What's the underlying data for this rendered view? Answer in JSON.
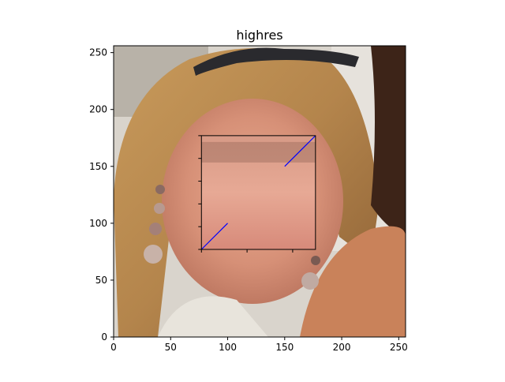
{
  "chart_data": {
    "type": "image",
    "title": "highres",
    "xlim": [
      0,
      256
    ],
    "ylim": [
      0,
      256
    ],
    "xticks": [
      0,
      50,
      100,
      150,
      200,
      250
    ],
    "yticks": [
      0,
      50,
      100,
      150,
      200,
      250
    ],
    "xtick_labels": [
      "0",
      "50",
      "100",
      "150",
      "200",
      "250"
    ],
    "ytick_labels": [
      "0",
      "50",
      "100",
      "150",
      "200",
      "250"
    ],
    "image_content": "photo",
    "inset": {
      "extent_x": [
        77,
        177
      ],
      "extent_y": [
        77,
        177
      ],
      "minor_ticks_x": [
        77,
        117,
        157
      ],
      "minor_ticks_y": [
        77,
        97,
        117,
        137,
        157,
        177
      ],
      "lines": [
        {
          "x": [
            77,
            100
          ],
          "y": [
            77,
            100
          ],
          "color": "#0000ff"
        },
        {
          "x": [
            150,
            177
          ],
          "y": [
            150,
            177
          ],
          "color": "#0000ff"
        }
      ]
    }
  }
}
